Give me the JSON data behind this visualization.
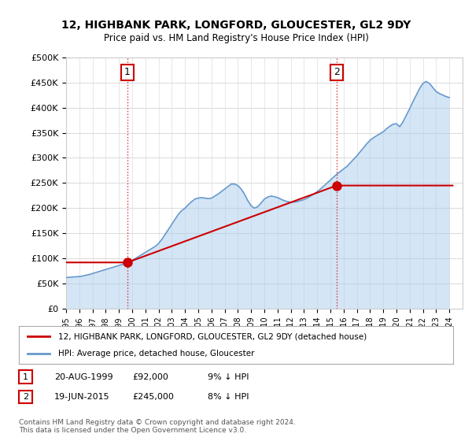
{
  "title": "12, HIGHBANK PARK, LONGFORD, GLOUCESTER, GL2 9DY",
  "subtitle": "Price paid vs. HM Land Registry's House Price Index (HPI)",
  "ylim": [
    0,
    500000
  ],
  "yticks": [
    0,
    50000,
    100000,
    150000,
    200000,
    250000,
    300000,
    350000,
    400000,
    450000,
    500000
  ],
  "ytick_labels": [
    "£0",
    "£50K",
    "£100K",
    "£150K",
    "£200K",
    "£250K",
    "£300K",
    "£350K",
    "£400K",
    "£450K",
    "£500K"
  ],
  "sale1": {
    "date": 1999.64,
    "price": 92000,
    "label": "1"
  },
  "sale2": {
    "date": 2015.47,
    "price": 245000,
    "label": "2"
  },
  "annotation1_date": 1999.64,
  "annotation2_date": 2015.47,
  "legend_property": "12, HIGHBANK PARK, LONGFORD, GLOUCESTER, GL2 9DY (detached house)",
  "legend_hpi": "HPI: Average price, detached house, Gloucester",
  "table_row1": [
    "1",
    "20-AUG-1999",
    "£92,000",
    "9% ↓ HPI"
  ],
  "table_row2": [
    "2",
    "19-JUN-2015",
    "£245,000",
    "8% ↓ HPI"
  ],
  "footer": "Contains HM Land Registry data © Crown copyright and database right 2024.\nThis data is licensed under the Open Government Licence v3.0.",
  "property_color": "#cc0000",
  "hpi_color": "#6699cc",
  "hpi_fill_color": "#aaccee",
  "background_color": "#ffffff",
  "grid_color": "#dddddd",
  "hpi_data": {
    "years": [
      1995.0,
      1995.25,
      1995.5,
      1995.75,
      1996.0,
      1996.25,
      1996.5,
      1996.75,
      1997.0,
      1997.25,
      1997.5,
      1997.75,
      1998.0,
      1998.25,
      1998.5,
      1998.75,
      1999.0,
      1999.25,
      1999.5,
      1999.75,
      2000.0,
      2000.25,
      2000.5,
      2000.75,
      2001.0,
      2001.25,
      2001.5,
      2001.75,
      2002.0,
      2002.25,
      2002.5,
      2002.75,
      2003.0,
      2003.25,
      2003.5,
      2003.75,
      2004.0,
      2004.25,
      2004.5,
      2004.75,
      2005.0,
      2005.25,
      2005.5,
      2005.75,
      2006.0,
      2006.25,
      2006.5,
      2006.75,
      2007.0,
      2007.25,
      2007.5,
      2007.75,
      2008.0,
      2008.25,
      2008.5,
      2008.75,
      2009.0,
      2009.25,
      2009.5,
      2009.75,
      2010.0,
      2010.25,
      2010.5,
      2010.75,
      2011.0,
      2011.25,
      2011.5,
      2011.75,
      2012.0,
      2012.25,
      2012.5,
      2012.75,
      2013.0,
      2013.25,
      2013.5,
      2013.75,
      2014.0,
      2014.25,
      2014.5,
      2014.75,
      2015.0,
      2015.25,
      2015.5,
      2015.75,
      2016.0,
      2016.25,
      2016.5,
      2016.75,
      2017.0,
      2017.25,
      2017.5,
      2017.75,
      2018.0,
      2018.25,
      2018.5,
      2018.75,
      2019.0,
      2019.25,
      2019.5,
      2019.75,
      2020.0,
      2020.25,
      2020.5,
      2020.75,
      2021.0,
      2021.25,
      2021.5,
      2021.75,
      2022.0,
      2022.25,
      2022.5,
      2022.75,
      2023.0,
      2023.25,
      2023.5,
      2023.75,
      2024.0
    ],
    "values": [
      62000,
      62500,
      63000,
      63500,
      64000,
      65000,
      66500,
      68000,
      70000,
      72000,
      74000,
      76000,
      78000,
      80000,
      82000,
      84000,
      86000,
      88000,
      90000,
      92500,
      96000,
      100000,
      104000,
      108000,
      112000,
      116000,
      120000,
      124000,
      130000,
      138000,
      148000,
      158000,
      168000,
      178000,
      188000,
      195000,
      200000,
      207000,
      213000,
      218000,
      220000,
      221000,
      220000,
      219000,
      220000,
      224000,
      228000,
      233000,
      238000,
      243000,
      248000,
      248000,
      245000,
      238000,
      228000,
      215000,
      205000,
      200000,
      203000,
      210000,
      218000,
      222000,
      224000,
      223000,
      221000,
      218000,
      215000,
      213000,
      212000,
      212000,
      213000,
      215000,
      217000,
      220000,
      224000,
      228000,
      233000,
      238000,
      244000,
      250000,
      256000,
      262000,
      268000,
      273000,
      278000,
      283000,
      290000,
      297000,
      304000,
      312000,
      320000,
      328000,
      335000,
      340000,
      344000,
      348000,
      352000,
      358000,
      363000,
      367000,
      368000,
      362000,
      372000,
      385000,
      398000,
      412000,
      425000,
      438000,
      448000,
      452000,
      448000,
      440000,
      432000,
      428000,
      425000,
      422000,
      420000
    ]
  }
}
